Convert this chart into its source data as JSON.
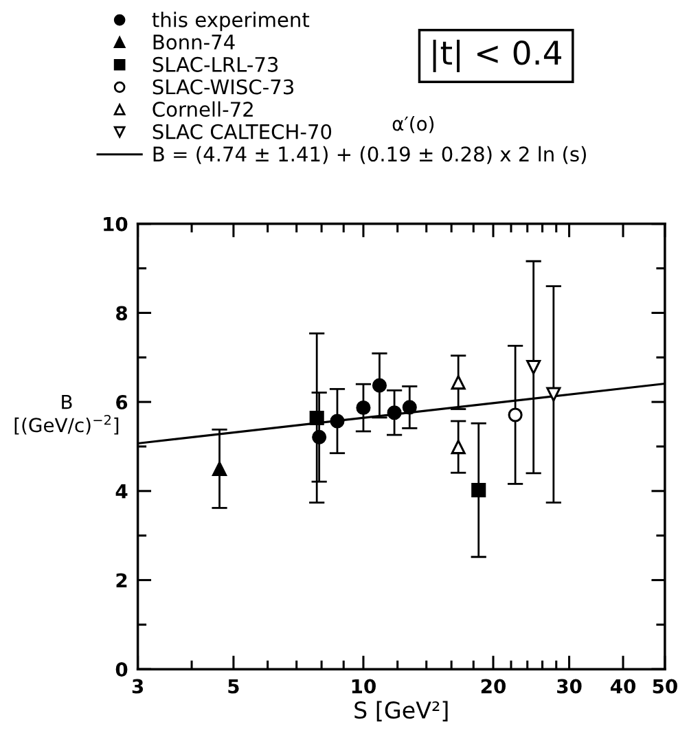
{
  "chart_data": {
    "type": "scatter",
    "xlabel": "S [GeV²]",
    "ylabel": "B\n[(GeV/c)$^{−2}$]",
    "annotations": [
      "|t| < 0.4",
      "α′(o)"
    ],
    "log": "x",
    "xlim": [
      3,
      50
    ],
    "xticks": [
      3,
      {
        "value": 4,
        "label": null
      },
      5,
      {
        "value": 6,
        "label": null
      },
      {
        "value": 7,
        "label": null
      },
      {
        "value": 8,
        "label": null
      },
      {
        "value": 9,
        "label": null
      },
      10,
      {
        "value": 12,
        "label": null
      },
      {
        "value": 14,
        "label": null
      },
      {
        "value": 16,
        "label": null
      },
      {
        "value": 18,
        "label": null
      },
      20,
      {
        "value": 22,
        "label": null
      },
      {
        "value": 24,
        "label": null
      },
      {
        "value": 26,
        "label": null
      },
      {
        "value": 28,
        "label": null
      },
      30,
      40,
      50
    ],
    "ylim": [
      0,
      10
    ],
    "yticks": [
      0,
      {
        "value": 1,
        "label": null
      },
      2,
      {
        "value": 3,
        "label": null
      },
      4,
      {
        "value": 5,
        "label": null
      },
      6,
      {
        "value": 7,
        "label": null
      },
      8,
      {
        "value": 9,
        "label": null
      },
      10
    ],
    "grid": false,
    "legend": "top left",
    "series": [
      {
        "name": "this experiment",
        "color": "#000000",
        "marker": "circle",
        "x": [
          7.9,
          8.7,
          10.0,
          10.9,
          11.8,
          12.8
        ],
        "values": [
          5.21,
          5.57,
          5.87,
          6.37,
          5.76,
          5.88
        ],
        "errors": [
          1.0,
          0.72,
          0.53,
          0.72,
          0.5,
          0.47
        ]
      },
      {
        "name": "Bonn-74",
        "color": "#000000",
        "marker": "triangle",
        "x": [
          4.64
        ],
        "values": [
          4.5
        ],
        "errors": [
          0.88
        ]
      },
      {
        "name": "SLAC-LRL-73",
        "color": "#000000",
        "marker": "square",
        "x": [
          7.8,
          18.5
        ],
        "values": [
          5.64,
          4.02
        ],
        "errors": [
          1.9,
          1.5
        ]
      },
      {
        "name": "SLAC-WISC-73",
        "color": "#000000",
        "marker": "circle-open",
        "x": [
          22.5
        ],
        "values": [
          5.71
        ],
        "errors": [
          1.55
        ]
      },
      {
        "name": "Cornell-72",
        "color": "#000000",
        "marker": "triangle-open",
        "x": [
          16.6,
          16.6
        ],
        "values": [
          6.44,
          4.99
        ],
        "errors": [
          0.6,
          0.58
        ]
      },
      {
        "name": "SLAC CALTECH-70",
        "color": "#000000",
        "marker": "triangle_down-open",
        "x": [
          24.8,
          27.6
        ],
        "values": [
          6.78,
          6.17
        ],
        "errors": [
          2.38,
          2.43
        ]
      },
      {
        "name": "B = (4.74 ± 1.41) + (0.19 ± 0.28) x 2 ln (s)",
        "type": "line",
        "color": "#000000",
        "marker": "none",
        "line_style": "solid",
        "x": [
          3,
          50
        ],
        "values": [
          5.07,
          6.41
        ]
      }
    ]
  }
}
